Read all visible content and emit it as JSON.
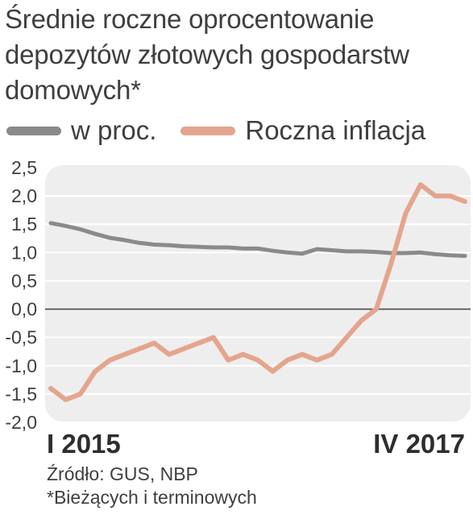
{
  "title": "Średnie roczne oprocentowanie depozytów złotowych gospodarstw domowych*",
  "legend": {
    "items": [
      {
        "label": "w proc.",
        "color": "#8a8a8a"
      },
      {
        "label": "Roczna inflacja",
        "color": "#e4a58e"
      }
    ]
  },
  "source": "Źródło: GUS, NBP",
  "footnote": "*Bieżących i terminowych",
  "chart_data": {
    "type": "line",
    "xlabel_start": "I 2015",
    "xlabel_end": "IV 2017",
    "ylim": [
      -2.0,
      2.5
    ],
    "yticks": [
      "2,5",
      "2,0",
      "1,5",
      "1,0",
      "0,5",
      "0,0",
      "-0,5",
      "-1,0",
      "-1,5",
      "-2,0"
    ],
    "series": [
      {
        "name": "w proc.",
        "color": "#8a8a8a",
        "values": [
          1.52,
          1.47,
          1.41,
          1.33,
          1.26,
          1.22,
          1.17,
          1.14,
          1.13,
          1.11,
          1.1,
          1.09,
          1.09,
          1.07,
          1.07,
          1.03,
          1.0,
          0.98,
          1.06,
          1.04,
          1.02,
          1.02,
          1.01,
          0.99,
          0.99,
          1.0,
          0.97,
          0.95,
          0.94
        ]
      },
      {
        "name": "Roczna inflacja",
        "color": "#e4a58e",
        "values": [
          -1.4,
          -1.6,
          -1.5,
          -1.1,
          -0.9,
          -0.8,
          -0.7,
          -0.6,
          -0.8,
          -0.7,
          -0.6,
          -0.5,
          -0.9,
          -0.8,
          -0.9,
          -1.1,
          -0.9,
          -0.8,
          -0.9,
          -0.8,
          -0.5,
          -0.2,
          0.0,
          0.8,
          1.7,
          2.2,
          2.0,
          2.0,
          1.9
        ]
      }
    ]
  }
}
